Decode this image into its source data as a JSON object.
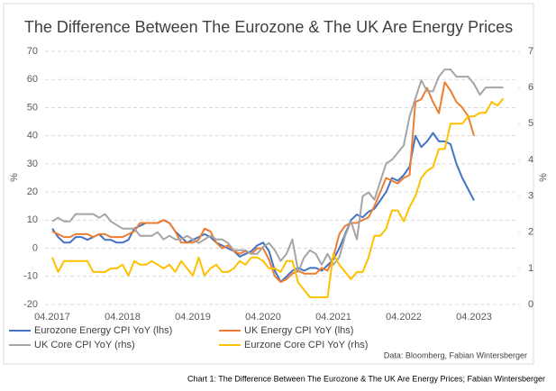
{
  "chart_data": {
    "type": "line",
    "title": "The Difference Between The Eurozone & The UK Are Energy Prices",
    "y_label": "%",
    "y2_label": "%",
    "source": "Data: Bloomberg, Fabian Wintersberger",
    "caption": "Chart 1: The Difference Between The Eurozone & The UK Are Energy Prices; Fabian Wintersberger",
    "categories": [
      "04.2017",
      null,
      null,
      null,
      null,
      null,
      null,
      null,
      null,
      null,
      null,
      null,
      "04.2018",
      null,
      null,
      null,
      null,
      null,
      null,
      null,
      null,
      null,
      null,
      null,
      "04.2019",
      null,
      null,
      null,
      null,
      null,
      null,
      null,
      null,
      null,
      null,
      null,
      "04.2020",
      null,
      null,
      null,
      null,
      null,
      null,
      null,
      null,
      null,
      null,
      null,
      "04.2021",
      null,
      null,
      null,
      null,
      null,
      null,
      null,
      null,
      null,
      null,
      null,
      "04.2022",
      null,
      null,
      null,
      null,
      null,
      null,
      null,
      null,
      null,
      null,
      null,
      "04.2023",
      null,
      null,
      null,
      null,
      null
    ],
    "ylim": [
      -20,
      70
    ],
    "yticks": [
      -20,
      -10,
      0,
      10,
      20,
      30,
      40,
      50,
      60,
      70
    ],
    "y2lim": [
      0,
      7
    ],
    "y2ticks": [
      0,
      1,
      2,
      3,
      4,
      5,
      6,
      7
    ],
    "grid": true,
    "series": [
      {
        "name": "Eurozone Energy CPI YoY (lhs)",
        "color": "#4472c4",
        "values": [
          7,
          4,
          2,
          2,
          4,
          4,
          3,
          4,
          5,
          3,
          3,
          2,
          2,
          3,
          7,
          8,
          9,
          9,
          9,
          10,
          9,
          6,
          4,
          2,
          3,
          4,
          5,
          4,
          2,
          1,
          0,
          -1,
          -3,
          -2,
          -1,
          1,
          2,
          -1,
          -8,
          -12,
          -10,
          -8,
          -7,
          -8,
          -7,
          -7,
          -8,
          -6,
          -4,
          0,
          5,
          10,
          12,
          11,
          13,
          14,
          17,
          20,
          25,
          24,
          26,
          29,
          40,
          36,
          38,
          41,
          38,
          38,
          37,
          30,
          25,
          21,
          17,
          null,
          null,
          null,
          null,
          null
        ]
      },
      {
        "name": "UK Energy CPI YoY (lhs)",
        "color": "#ed7d31",
        "values": [
          6,
          5,
          4,
          4,
          5,
          5,
          5,
          4,
          5,
          5,
          4,
          4,
          4,
          5,
          6,
          9,
          9,
          9,
          9,
          10,
          9,
          6,
          2,
          2,
          2,
          3,
          7,
          6,
          2,
          0,
          1,
          -1,
          -2,
          -1,
          -2,
          0,
          0,
          -4,
          -10,
          -12,
          -11,
          -9,
          -8,
          -9,
          -9,
          -9,
          -7,
          -8,
          -3,
          5,
          8,
          9,
          9,
          10,
          11,
          15,
          20,
          25,
          24,
          23,
          25,
          26,
          52,
          53,
          57,
          52,
          48,
          59,
          56,
          52,
          50,
          47,
          40,
          null,
          null,
          null,
          null,
          null
        ]
      },
      {
        "name": "UK Core CPI YoY (rhs)",
        "color": "#a5a5a5",
        "axis": "y2",
        "values": [
          2.3,
          2.4,
          2.3,
          2.3,
          2.5,
          2.5,
          2.5,
          2.5,
          2.4,
          2.5,
          2.3,
          2.2,
          2.1,
          2.1,
          2.1,
          1.9,
          1.9,
          1.9,
          2.0,
          1.8,
          1.9,
          1.8,
          1.8,
          1.9,
          1.8,
          1.7,
          1.8,
          1.9,
          1.8,
          1.8,
          1.7,
          1.5,
          1.5,
          1.5,
          1.4,
          1.4,
          1.6,
          1.7,
          1.5,
          1.2,
          1.4,
          1.8,
          0.9,
          1.3,
          1.5,
          1.4,
          1.1,
          1.4,
          1.1,
          1.3,
          1.9,
          2.3,
          1.8,
          3.0,
          3.1,
          2.9,
          3.4,
          3.9,
          4.0,
          4.2,
          4.4,
          5.2,
          5.7,
          6.2,
          5.9,
          5.9,
          6.3,
          6.5,
          6.5,
          6.3,
          6.3,
          6.3,
          6.1,
          5.8,
          6.0,
          6.0,
          6.0,
          6.0
        ]
      },
      {
        "name": "Eurzone Core CPI YoY (rhs)",
        "color": "#ffc000",
        "axis": "y2",
        "values": [
          1.3,
          0.9,
          1.2,
          1.2,
          1.2,
          1.2,
          1.2,
          0.9,
          0.9,
          0.9,
          1.0,
          1.0,
          1.1,
          0.8,
          1.2,
          1.1,
          1.1,
          1.2,
          1.1,
          1.0,
          1.1,
          0.9,
          1.2,
          1.0,
          0.8,
          1.3,
          0.8,
          1.0,
          1.1,
          0.9,
          0.9,
          1.0,
          1.2,
          1.1,
          1.3,
          1.3,
          1.2,
          1.0,
          1.0,
          0.9,
          1.2,
          1.2,
          0.6,
          0.4,
          0.2,
          0.2,
          0.2,
          0.2,
          1.4,
          1.1,
          0.9,
          0.7,
          0.9,
          0.9,
          1.3,
          1.9,
          1.9,
          2.1,
          2.6,
          2.6,
          2.3,
          2.7,
          3.0,
          3.5,
          3.7,
          3.8,
          4.3,
          4.3,
          5.0,
          5.0,
          5.0,
          5.2,
          5.2,
          5.3,
          5.3,
          5.6,
          5.5,
          5.7
        ]
      }
    ]
  }
}
